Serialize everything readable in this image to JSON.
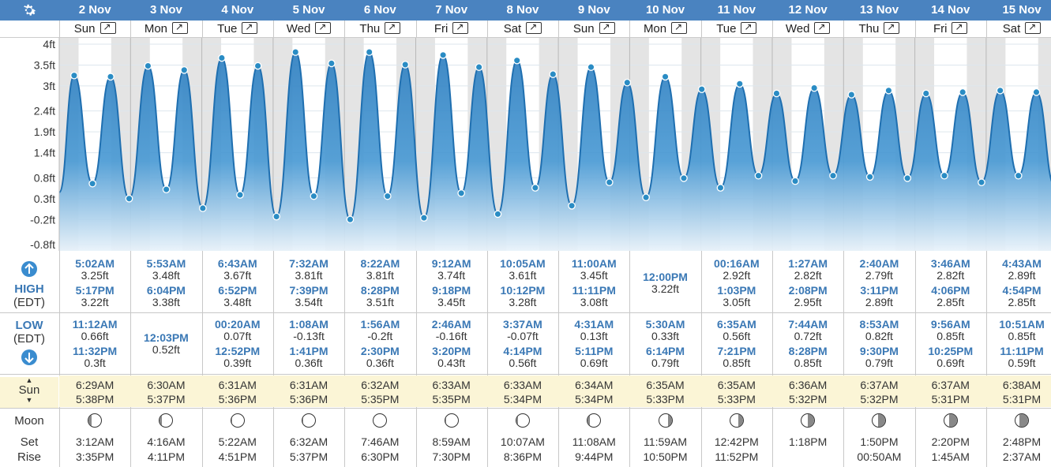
{
  "ui": {
    "gear_icon": "gear-icon",
    "high_label": "HIGH",
    "high_tz": "(EDT)",
    "low_label": "LOW",
    "low_tz": "(EDT)",
    "sun_label": "Sun",
    "moon_label": "Moon",
    "set_label": "Set",
    "rise_label": "Rise"
  },
  "days": [
    {
      "date": "2 Nov",
      "dow": "Sun",
      "high": [
        {
          "t": "5:02AM",
          "h": "3.25ft"
        },
        {
          "t": "5:17PM",
          "h": "3.22ft"
        }
      ],
      "low": [
        {
          "t": "11:12AM",
          "h": "0.66ft"
        },
        {
          "t": "11:32PM",
          "h": "0.3ft"
        }
      ],
      "sunrise": "6:29AM",
      "sunset": "5:38PM",
      "moonset": "3:12AM",
      "moonrise": "3:35PM",
      "moon_phase": 0.78
    },
    {
      "date": "3 Nov",
      "dow": "Mon",
      "high": [
        {
          "t": "5:53AM",
          "h": "3.48ft"
        },
        {
          "t": "6:04PM",
          "h": "3.38ft"
        }
      ],
      "low": [
        {
          "t": "12:03PM",
          "h": "0.52ft"
        }
      ],
      "sunrise": "6:30AM",
      "sunset": "5:37PM",
      "moonset": "4:16AM",
      "moonrise": "4:11PM",
      "moon_phase": 0.85
    },
    {
      "date": "4 Nov",
      "dow": "Tue",
      "high": [
        {
          "t": "6:43AM",
          "h": "3.67ft"
        },
        {
          "t": "6:52PM",
          "h": "3.48ft"
        }
      ],
      "low": [
        {
          "t": "00:20AM",
          "h": "0.07ft"
        },
        {
          "t": "12:52PM",
          "h": "0.39ft"
        }
      ],
      "sunrise": "6:31AM",
      "sunset": "5:36PM",
      "moonset": "5:22AM",
      "moonrise": "4:51PM",
      "moon_phase": 0.92
    },
    {
      "date": "5 Nov",
      "dow": "Wed",
      "high": [
        {
          "t": "7:32AM",
          "h": "3.81ft"
        },
        {
          "t": "7:39PM",
          "h": "3.54ft"
        }
      ],
      "low": [
        {
          "t": "1:08AM",
          "h": "-0.13ft"
        },
        {
          "t": "1:41PM",
          "h": "0.36ft"
        }
      ],
      "sunrise": "6:31AM",
      "sunset": "5:36PM",
      "moonset": "6:32AM",
      "moonrise": "5:37PM",
      "moon_phase": 0.98
    },
    {
      "date": "6 Nov",
      "dow": "Thu",
      "high": [
        {
          "t": "8:22AM",
          "h": "3.81ft"
        },
        {
          "t": "8:28PM",
          "h": "3.51ft"
        }
      ],
      "low": [
        {
          "t": "1:56AM",
          "h": "-0.2ft"
        },
        {
          "t": "2:30PM",
          "h": "0.36ft"
        }
      ],
      "sunrise": "6:32AM",
      "sunset": "5:35PM",
      "moonset": "7:46AM",
      "moonrise": "6:30PM",
      "moon_phase": 1.0
    },
    {
      "date": "7 Nov",
      "dow": "Fri",
      "high": [
        {
          "t": "9:12AM",
          "h": "3.74ft"
        },
        {
          "t": "9:18PM",
          "h": "3.45ft"
        }
      ],
      "low": [
        {
          "t": "2:46AM",
          "h": "-0.16ft"
        },
        {
          "t": "3:20PM",
          "h": "0.43ft"
        }
      ],
      "sunrise": "6:33AM",
      "sunset": "5:35PM",
      "moonset": "8:59AM",
      "moonrise": "7:30PM",
      "moon_phase": 0.95
    },
    {
      "date": "8 Nov",
      "dow": "Sat",
      "high": [
        {
          "t": "10:05AM",
          "h": "3.61ft"
        },
        {
          "t": "10:12PM",
          "h": "3.28ft"
        }
      ],
      "low": [
        {
          "t": "3:37AM",
          "h": "-0.07ft"
        },
        {
          "t": "4:14PM",
          "h": "0.56ft"
        }
      ],
      "sunrise": "6:33AM",
      "sunset": "5:34PM",
      "moonset": "10:07AM",
      "moonrise": "8:36PM",
      "moon_phase": 0.88
    },
    {
      "date": "9 Nov",
      "dow": "Sun",
      "high": [
        {
          "t": "11:00AM",
          "h": "3.45ft"
        },
        {
          "t": "11:11PM",
          "h": "3.08ft"
        }
      ],
      "low": [
        {
          "t": "4:31AM",
          "h": "0.13ft"
        },
        {
          "t": "5:11PM",
          "h": "0.69ft"
        }
      ],
      "sunrise": "6:34AM",
      "sunset": "5:34PM",
      "moonset": "11:08AM",
      "moonrise": "9:44PM",
      "moon_phase": 0.8
    },
    {
      "date": "10 Nov",
      "dow": "Mon",
      "high": [
        {
          "t": "12:00PM",
          "h": "3.22ft"
        }
      ],
      "low": [
        {
          "t": "5:30AM",
          "h": "0.33ft"
        },
        {
          "t": "6:14PM",
          "h": "0.79ft"
        }
      ],
      "sunrise": "6:35AM",
      "sunset": "5:33PM",
      "moonset": "11:59AM",
      "moonrise": "10:50PM",
      "moon_phase": 0.72
    },
    {
      "date": "11 Nov",
      "dow": "Tue",
      "high": [
        {
          "t": "00:16AM",
          "h": "2.92ft"
        },
        {
          "t": "1:03PM",
          "h": "3.05ft"
        }
      ],
      "low": [
        {
          "t": "6:35AM",
          "h": "0.56ft"
        },
        {
          "t": "7:21PM",
          "h": "0.85ft"
        }
      ],
      "sunrise": "6:35AM",
      "sunset": "5:33PM",
      "moonset": "12:42PM",
      "moonrise": "11:52PM",
      "moon_phase": 0.62
    },
    {
      "date": "12 Nov",
      "dow": "Wed",
      "high": [
        {
          "t": "1:27AM",
          "h": "2.82ft"
        },
        {
          "t": "2:08PM",
          "h": "2.95ft"
        }
      ],
      "low": [
        {
          "t": "7:44AM",
          "h": "0.72ft"
        },
        {
          "t": "8:28PM",
          "h": "0.85ft"
        }
      ],
      "sunrise": "6:36AM",
      "sunset": "5:32PM",
      "moonset": "1:18PM",
      "moonrise": "",
      "moon_phase": 0.52
    },
    {
      "date": "13 Nov",
      "dow": "Thu",
      "high": [
        {
          "t": "2:40AM",
          "h": "2.79ft"
        },
        {
          "t": "3:11PM",
          "h": "2.89ft"
        }
      ],
      "low": [
        {
          "t": "8:53AM",
          "h": "0.82ft"
        },
        {
          "t": "9:30PM",
          "h": "0.79ft"
        }
      ],
      "sunrise": "6:37AM",
      "sunset": "5:32PM",
      "moonset": "1:50PM",
      "moonrise": "00:50AM",
      "moon_phase": 0.44
    },
    {
      "date": "14 Nov",
      "dow": "Fri",
      "high": [
        {
          "t": "3:46AM",
          "h": "2.82ft"
        },
        {
          "t": "4:06PM",
          "h": "2.85ft"
        }
      ],
      "low": [
        {
          "t": "9:56AM",
          "h": "0.85ft"
        },
        {
          "t": "10:25PM",
          "h": "0.69ft"
        }
      ],
      "sunrise": "6:37AM",
      "sunset": "5:31PM",
      "moonset": "2:20PM",
      "moonrise": "1:45AM",
      "moon_phase": 0.36
    },
    {
      "date": "15 Nov",
      "dow": "Sat",
      "high": [
        {
          "t": "4:43AM",
          "h": "2.89ft"
        },
        {
          "t": "4:54PM",
          "h": "2.85ft"
        }
      ],
      "low": [
        {
          "t": "10:51AM",
          "h": "0.85ft"
        },
        {
          "t": "11:11PM",
          "h": "0.59ft"
        }
      ],
      "sunrise": "6:38AM",
      "sunset": "5:31PM",
      "moonset": "2:48PM",
      "moonrise": "2:37AM",
      "moon_phase": 0.28
    }
  ],
  "chart_data": {
    "type": "area",
    "ylabel": "",
    "y_ticks": [
      "4ft",
      "3.5ft",
      "3ft",
      "2.4ft",
      "1.9ft",
      "1.4ft",
      "0.8ft",
      "0.3ft",
      "-0.2ft",
      "-0.8ft"
    ],
    "y_tick_values": [
      4.0,
      3.5,
      3.0,
      2.4,
      1.9,
      1.4,
      0.8,
      0.3,
      -0.2,
      -0.8
    ],
    "ylim": [
      -0.8,
      4.0
    ],
    "x_unit": "hours since 2 Nov 00:00",
    "series_color": "#2f7fc0",
    "points": [
      [
        0.0,
        0.45
      ],
      [
        5.03,
        3.25
      ],
      [
        11.2,
        0.66
      ],
      [
        17.28,
        3.22
      ],
      [
        23.53,
        0.3
      ],
      [
        29.88,
        3.48
      ],
      [
        36.05,
        0.52
      ],
      [
        42.07,
        3.38
      ],
      [
        48.33,
        0.07
      ],
      [
        54.72,
        3.67
      ],
      [
        60.87,
        0.39
      ],
      [
        66.87,
        3.48
      ],
      [
        73.13,
        -0.13
      ],
      [
        79.53,
        3.81
      ],
      [
        85.68,
        0.36
      ],
      [
        91.65,
        3.54
      ],
      [
        97.93,
        -0.2
      ],
      [
        104.37,
        3.81
      ],
      [
        110.5,
        0.36
      ],
      [
        116.47,
        3.51
      ],
      [
        122.77,
        -0.16
      ],
      [
        129.2,
        3.74
      ],
      [
        135.33,
        0.43
      ],
      [
        141.3,
        3.45
      ],
      [
        147.62,
        -0.07
      ],
      [
        154.08,
        3.61
      ],
      [
        160.23,
        0.56
      ],
      [
        166.2,
        3.28
      ],
      [
        172.52,
        0.13
      ],
      [
        179.0,
        3.45
      ],
      [
        185.18,
        0.69
      ],
      [
        191.18,
        3.08
      ],
      [
        197.5,
        0.33
      ],
      [
        204.0,
        3.22
      ],
      [
        210.23,
        0.79
      ],
      [
        216.27,
        2.92
      ],
      [
        222.58,
        0.56
      ],
      [
        229.05,
        3.05
      ],
      [
        235.35,
        0.85
      ],
      [
        241.45,
        2.82
      ],
      [
        247.73,
        0.72
      ],
      [
        254.13,
        2.95
      ],
      [
        260.47,
        0.85
      ],
      [
        266.67,
        2.79
      ],
      [
        272.88,
        0.82
      ],
      [
        279.18,
        2.89
      ],
      [
        285.5,
        0.79
      ],
      [
        291.77,
        2.82
      ],
      [
        297.93,
        0.85
      ],
      [
        304.1,
        2.85
      ],
      [
        310.42,
        0.69
      ],
      [
        316.72,
        2.89
      ],
      [
        322.85,
        0.85
      ],
      [
        328.9,
        2.85
      ],
      [
        335.18,
        0.59
      ],
      [
        336.0,
        0.9
      ]
    ]
  }
}
